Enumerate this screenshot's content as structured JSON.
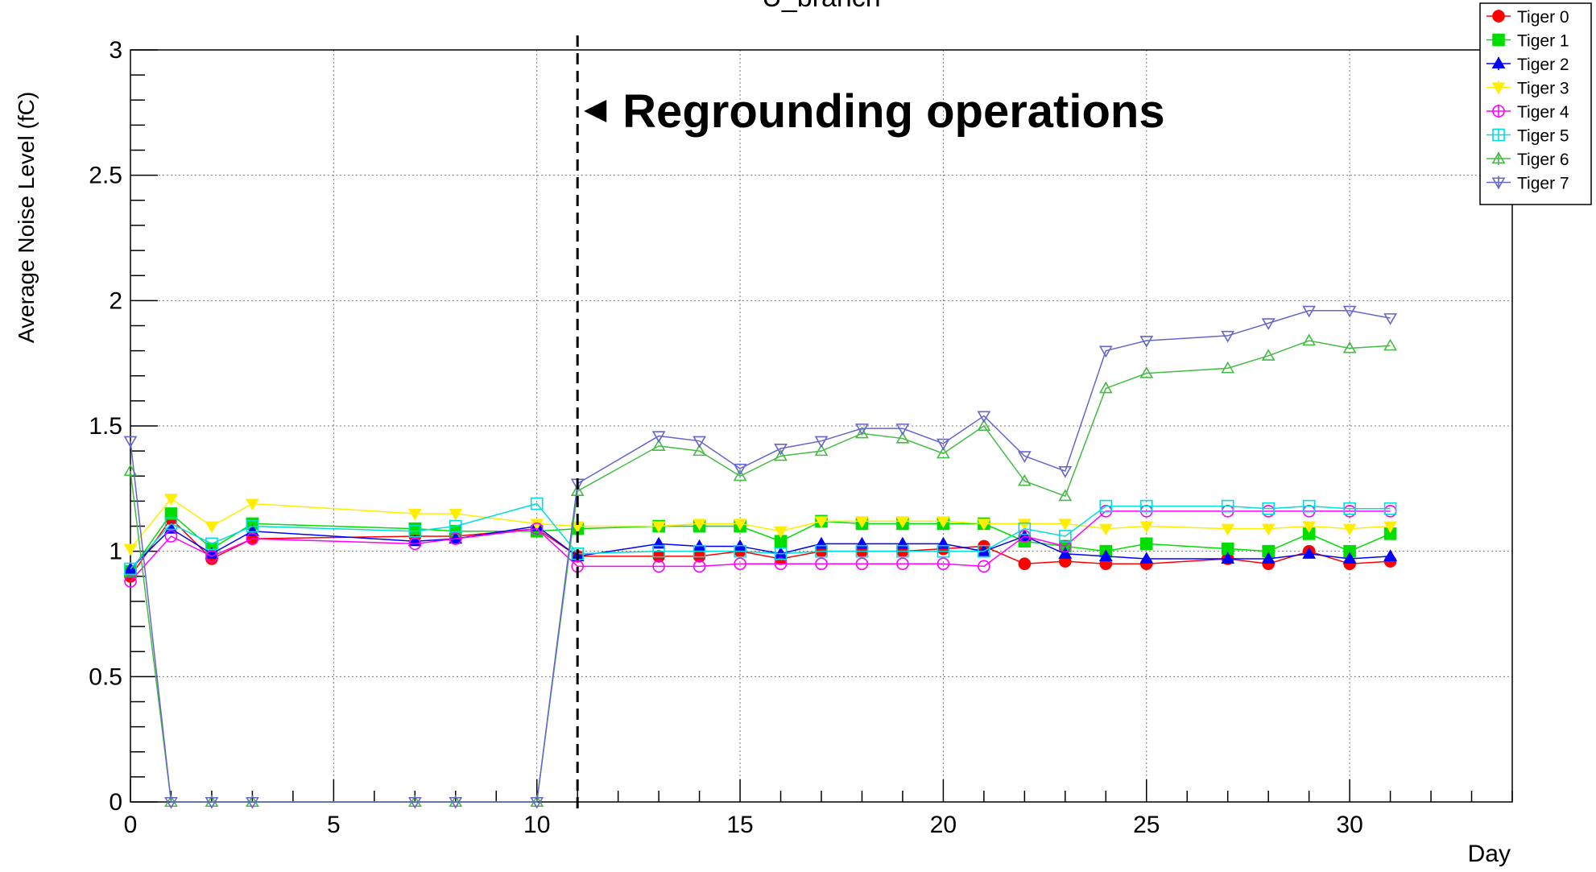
{
  "chart_data": {
    "type": "line",
    "title": "U_branch",
    "xlabel": "Day",
    "ylabel": "Average Noise Level (fC)",
    "xlim": [
      0,
      34
    ],
    "ylim": [
      0,
      3
    ],
    "xticks": [
      0,
      5,
      10,
      15,
      20,
      25,
      30
    ],
    "yticks": [
      0,
      0.5,
      1,
      1.5,
      2,
      2.5,
      3
    ],
    "grid": true,
    "legend": "top-right",
    "x": [
      0,
      1,
      2,
      3,
      7,
      8,
      10,
      11,
      13,
      14,
      15,
      16,
      17,
      18,
      19,
      20,
      21,
      22,
      23,
      24,
      25,
      27,
      28,
      29,
      30,
      31
    ],
    "series": [
      {
        "name": "Tiger 0",
        "color": "#ff0000",
        "marker": "circle-filled",
        "values": [
          0.9,
          1.13,
          0.97,
          1.05,
          1.06,
          1.06,
          1.09,
          0.98,
          0.98,
          0.98,
          1.0,
          0.97,
          1.0,
          1.0,
          1.0,
          1.01,
          1.02,
          0.95,
          0.96,
          0.95,
          0.95,
          0.97,
          0.95,
          1.0,
          0.95,
          0.96
        ]
      },
      {
        "name": "Tiger 1",
        "color": "#00dd00",
        "marker": "square-filled",
        "values": [
          0.92,
          1.15,
          1.01,
          1.11,
          1.09,
          1.08,
          1.08,
          1.09,
          1.1,
          1.1,
          1.1,
          1.04,
          1.12,
          1.11,
          1.11,
          1.11,
          1.11,
          1.04,
          1.02,
          1.0,
          1.03,
          1.01,
          1.0,
          1.07,
          1.0,
          1.07
        ]
      },
      {
        "name": "Tiger 2",
        "color": "#0000ff",
        "marker": "triangle-up-filled",
        "values": [
          0.93,
          1.09,
          0.99,
          1.08,
          1.04,
          1.05,
          1.1,
          0.98,
          1.03,
          1.02,
          1.02,
          0.99,
          1.03,
          1.03,
          1.03,
          1.03,
          1.0,
          1.06,
          0.99,
          0.98,
          0.97,
          0.97,
          0.97,
          0.99,
          0.97,
          0.98
        ]
      },
      {
        "name": "Tiger 3",
        "color": "#ffee00",
        "marker": "triangle-down-filled",
        "values": [
          1.01,
          1.21,
          1.1,
          1.19,
          1.15,
          1.15,
          1.11,
          1.1,
          1.1,
          1.11,
          1.11,
          1.08,
          1.12,
          1.12,
          1.12,
          1.12,
          1.11,
          1.11,
          1.11,
          1.09,
          1.1,
          1.09,
          1.09,
          1.1,
          1.09,
          1.1
        ]
      },
      {
        "name": "Tiger 4",
        "color": "#ff00ff",
        "marker": "circle-open",
        "values": [
          0.88,
          1.06,
          0.98,
          1.05,
          1.03,
          1.05,
          1.09,
          0.94,
          0.94,
          0.94,
          0.95,
          0.95,
          0.95,
          0.95,
          0.95,
          0.95,
          0.94,
          1.06,
          1.02,
          1.16,
          1.16,
          1.16,
          1.16,
          1.16,
          1.16,
          1.16
        ]
      },
      {
        "name": "Tiger 5",
        "color": "#00dddd",
        "marker": "square-open",
        "values": [
          0.93,
          1.11,
          1.03,
          1.1,
          1.08,
          1.1,
          1.19,
          0.99,
          1.0,
          1.0,
          1.0,
          0.99,
          1.0,
          1.0,
          1.0,
          1.0,
          1.0,
          1.09,
          1.06,
          1.18,
          1.18,
          1.18,
          1.17,
          1.18,
          1.17,
          1.17
        ]
      },
      {
        "name": "Tiger 6",
        "color": "#44bb44",
        "marker": "triangle-up-open",
        "values": [
          1.32,
          0.0,
          0.0,
          0.0,
          0.0,
          0.0,
          0.0,
          1.24,
          1.42,
          1.4,
          1.3,
          1.38,
          1.4,
          1.47,
          1.45,
          1.39,
          1.5,
          1.28,
          1.22,
          1.65,
          1.71,
          1.73,
          1.78,
          1.84,
          1.81,
          1.82
        ]
      },
      {
        "name": "Tiger 7",
        "color": "#6666cc",
        "marker": "triangle-down-open",
        "values": [
          1.44,
          0.0,
          0.0,
          0.0,
          0.0,
          0.0,
          0.0,
          1.27,
          1.46,
          1.44,
          1.33,
          1.41,
          1.44,
          1.49,
          1.49,
          1.43,
          1.54,
          1.38,
          1.32,
          1.8,
          1.84,
          1.86,
          1.91,
          1.96,
          1.96,
          1.93
        ]
      }
    ],
    "annotations": [
      {
        "text": "Regrounding operations",
        "x": 11,
        "style": "dashed-vertical-line"
      }
    ]
  }
}
